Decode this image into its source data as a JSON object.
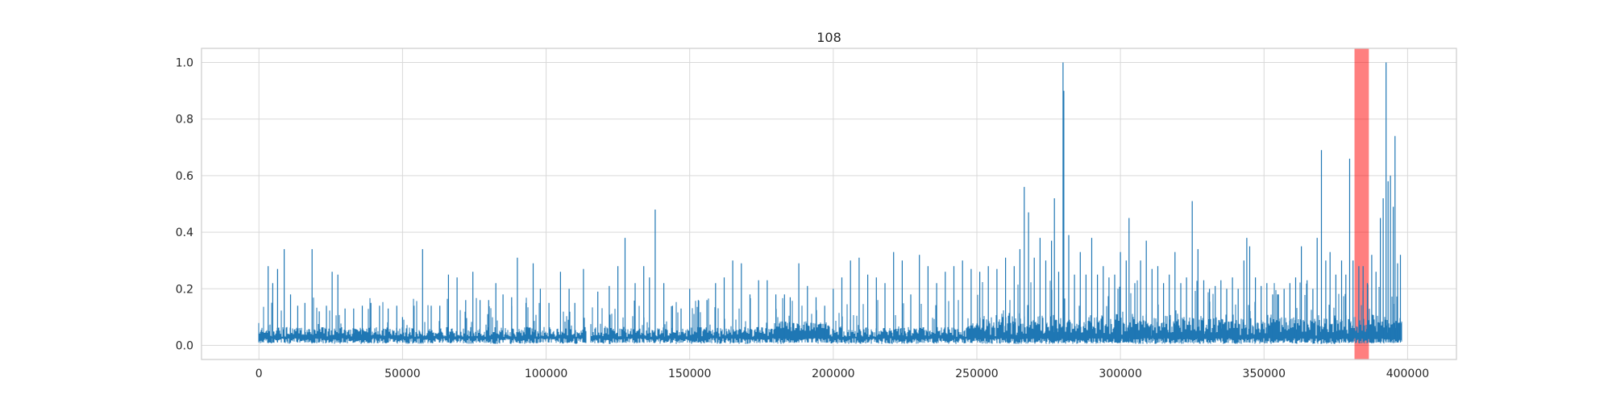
{
  "chart_data": {
    "type": "line",
    "title": "108",
    "xlabel": "",
    "ylabel": "",
    "xlim": [
      -20000,
      417000
    ],
    "ylim": [
      -0.05,
      1.05
    ],
    "x_ticks": [
      0,
      50000,
      100000,
      150000,
      200000,
      250000,
      300000,
      350000,
      400000
    ],
    "y_ticks": [
      0.0,
      0.2,
      0.4,
      0.6,
      0.8,
      1.0
    ],
    "x_tick_labels": [
      "0",
      "50000",
      "100000",
      "150000",
      "200000",
      "250000",
      "300000",
      "350000",
      "400000"
    ],
    "y_tick_labels": [
      "0.0",
      "0.2",
      "0.4",
      "0.6",
      "0.8",
      "1.0"
    ],
    "grid": true,
    "line_color": "#1f77b4",
    "highlight_color": "#ff0000",
    "highlight_region": [
      381500,
      386500
    ],
    "series": [
      {
        "x_range": [
          0,
          398000
        ],
        "baseline": 0.02,
        "gap": [
          114000,
          115500
        ],
        "peaks": [
          [
            3200,
            0.28
          ],
          [
            4800,
            0.22
          ],
          [
            6500,
            0.27
          ],
          [
            8800,
            0.34
          ],
          [
            11000,
            0.18
          ],
          [
            13500,
            0.14
          ],
          [
            16000,
            0.15
          ],
          [
            18500,
            0.34
          ],
          [
            21000,
            0.12
          ],
          [
            23500,
            0.14
          ],
          [
            25500,
            0.26
          ],
          [
            27500,
            0.25
          ],
          [
            30000,
            0.13
          ],
          [
            33000,
            0.13
          ],
          [
            36000,
            0.14
          ],
          [
            39000,
            0.15
          ],
          [
            42000,
            0.14
          ],
          [
            45000,
            0.13
          ],
          [
            48000,
            0.14
          ],
          [
            50000,
            0.1
          ],
          [
            54000,
            0.14
          ],
          [
            57000,
            0.34
          ],
          [
            60000,
            0.14
          ],
          [
            63000,
            0.14
          ],
          [
            66000,
            0.25
          ],
          [
            69000,
            0.24
          ],
          [
            72000,
            0.16
          ],
          [
            74500,
            0.26
          ],
          [
            77000,
            0.16
          ],
          [
            80000,
            0.16
          ],
          [
            82500,
            0.22
          ],
          [
            85000,
            0.18
          ],
          [
            88000,
            0.17
          ],
          [
            90000,
            0.31
          ],
          [
            93000,
            0.15
          ],
          [
            95500,
            0.29
          ],
          [
            98000,
            0.2
          ],
          [
            101000,
            0.15
          ],
          [
            105000,
            0.26
          ],
          [
            108000,
            0.2
          ],
          [
            110000,
            0.15
          ],
          [
            113000,
            0.27
          ],
          [
            118000,
            0.19
          ],
          [
            122000,
            0.21
          ],
          [
            125000,
            0.28
          ],
          [
            127500,
            0.38
          ],
          [
            131000,
            0.22
          ],
          [
            134000,
            0.28
          ],
          [
            136000,
            0.24
          ],
          [
            138000,
            0.48
          ],
          [
            141000,
            0.22
          ],
          [
            144000,
            0.14
          ],
          [
            147000,
            0.13
          ],
          [
            150000,
            0.2
          ],
          [
            153000,
            0.16
          ],
          [
            156000,
            0.16
          ],
          [
            159000,
            0.22
          ],
          [
            162000,
            0.24
          ],
          [
            165000,
            0.3
          ],
          [
            168000,
            0.29
          ],
          [
            171000,
            0.18
          ],
          [
            174000,
            0.23
          ],
          [
            177000,
            0.23
          ],
          [
            180000,
            0.18
          ],
          [
            183000,
            0.18
          ],
          [
            185000,
            0.17
          ],
          [
            188000,
            0.29
          ],
          [
            191000,
            0.21
          ],
          [
            194000,
            0.17
          ],
          [
            197000,
            0.14
          ],
          [
            200000,
            0.2
          ],
          [
            203000,
            0.24
          ],
          [
            206000,
            0.3
          ],
          [
            209000,
            0.31
          ],
          [
            212000,
            0.25
          ],
          [
            215000,
            0.24
          ],
          [
            218000,
            0.22
          ],
          [
            221000,
            0.33
          ],
          [
            224000,
            0.3
          ],
          [
            227000,
            0.18
          ],
          [
            230000,
            0.32
          ],
          [
            233000,
            0.28
          ],
          [
            236000,
            0.22
          ],
          [
            239000,
            0.26
          ],
          [
            242000,
            0.28
          ],
          [
            245000,
            0.3
          ],
          [
            248000,
            0.27
          ],
          [
            251000,
            0.26
          ],
          [
            254000,
            0.28
          ],
          [
            257000,
            0.27
          ],
          [
            260000,
            0.31
          ],
          [
            263000,
            0.28
          ],
          [
            265000,
            0.34
          ],
          [
            266500,
            0.56
          ],
          [
            268000,
            0.47
          ],
          [
            270000,
            0.31
          ],
          [
            272000,
            0.38
          ],
          [
            274000,
            0.3
          ],
          [
            276000,
            0.37
          ],
          [
            277000,
            0.52
          ],
          [
            278500,
            0.26
          ],
          [
            280000,
            1.0
          ],
          [
            280300,
            0.9
          ],
          [
            282000,
            0.39
          ],
          [
            284000,
            0.25
          ],
          [
            286000,
            0.33
          ],
          [
            288000,
            0.25
          ],
          [
            290000,
            0.38
          ],
          [
            292000,
            0.25
          ],
          [
            294000,
            0.28
          ],
          [
            296000,
            0.24
          ],
          [
            298000,
            0.25
          ],
          [
            300000,
            0.33
          ],
          [
            302000,
            0.3
          ],
          [
            303000,
            0.45
          ],
          [
            305000,
            0.22
          ],
          [
            307000,
            0.3
          ],
          [
            309000,
            0.37
          ],
          [
            311000,
            0.27
          ],
          [
            313000,
            0.28
          ],
          [
            315000,
            0.22
          ],
          [
            317000,
            0.25
          ],
          [
            319000,
            0.33
          ],
          [
            321000,
            0.22
          ],
          [
            323000,
            0.24
          ],
          [
            325000,
            0.51
          ],
          [
            327000,
            0.34
          ],
          [
            329000,
            0.23
          ],
          [
            331000,
            0.2
          ],
          [
            333000,
            0.21
          ],
          [
            335000,
            0.23
          ],
          [
            337000,
            0.2
          ],
          [
            339000,
            0.24
          ],
          [
            341000,
            0.2
          ],
          [
            343000,
            0.3
          ],
          [
            344000,
            0.38
          ],
          [
            345000,
            0.35
          ],
          [
            347000,
            0.24
          ],
          [
            349000,
            0.21
          ],
          [
            351000,
            0.22
          ],
          [
            353000,
            0.18
          ],
          [
            355000,
            0.18
          ],
          [
            357000,
            0.2
          ],
          [
            359000,
            0.22
          ],
          [
            361000,
            0.24
          ],
          [
            363000,
            0.35
          ],
          [
            365000,
            0.23
          ],
          [
            367000,
            0.2
          ],
          [
            368500,
            0.38
          ],
          [
            370000,
            0.69
          ],
          [
            371500,
            0.3
          ],
          [
            373000,
            0.33
          ],
          [
            375000,
            0.25
          ],
          [
            377000,
            0.3
          ],
          [
            378500,
            0.25
          ],
          [
            379800,
            0.66
          ],
          [
            381000,
            0.3
          ],
          [
            383000,
            0.28
          ],
          [
            384500,
            0.28
          ],
          [
            386000,
            0.22
          ],
          [
            387500,
            0.32
          ],
          [
            389000,
            0.26
          ],
          [
            390500,
            0.45
          ],
          [
            391500,
            0.52
          ],
          [
            392500,
            1.0
          ],
          [
            393200,
            0.58
          ],
          [
            394000,
            0.6
          ],
          [
            395000,
            0.49
          ],
          [
            395600,
            0.74
          ],
          [
            396500,
            0.29
          ],
          [
            397500,
            0.32
          ]
        ]
      }
    ]
  }
}
